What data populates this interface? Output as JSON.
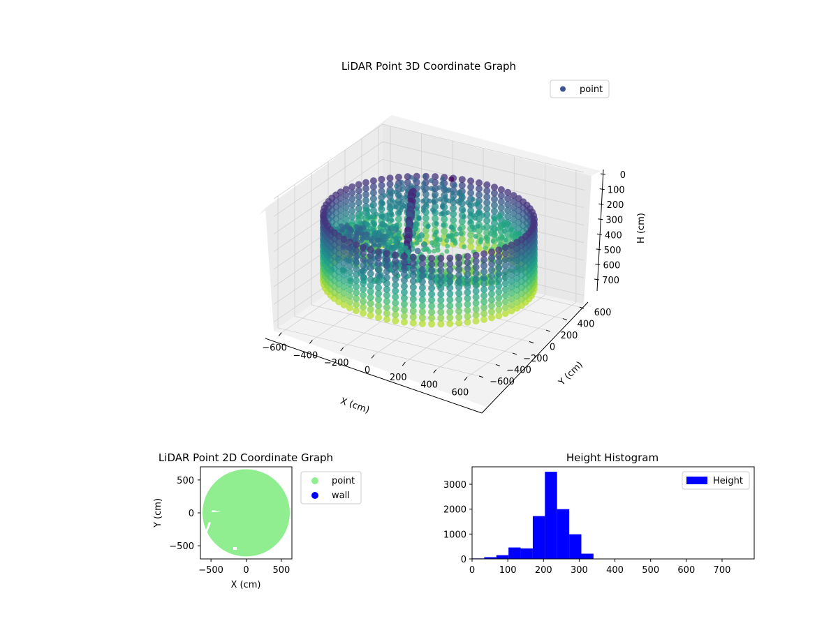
{
  "chart_data": [
    {
      "type": "scatter3d",
      "title": "LiDAR Point 3D Coordinate Graph",
      "xlabel": "X (cm)",
      "ylabel": "Y (cm)",
      "zlabel": "H (cm)",
      "xticks": [
        -600,
        -400,
        -200,
        0,
        200,
        400,
        600
      ],
      "yticks": [
        -600,
        -400,
        -200,
        0,
        200,
        400,
        600
      ],
      "zticks": [
        0,
        100,
        200,
        300,
        400,
        500,
        600,
        700
      ],
      "xlim": [
        -650,
        650
      ],
      "ylim": [
        -650,
        650
      ],
      "zlim": [
        0,
        750
      ],
      "z_inverted": true,
      "legend": [
        {
          "label": "point",
          "color": "#3b528b"
        }
      ],
      "legend_position": "top-right",
      "colormap": "viridis",
      "wall_radius": 600,
      "grid": true
    },
    {
      "type": "scatter",
      "title": "LiDAR Point 2D Coordinate Graph",
      "xlabel": "X (cm)",
      "ylabel": "Y (cm)",
      "xticks": [
        -500,
        0,
        500
      ],
      "yticks": [
        500,
        0,
        -500
      ],
      "xlim": [
        -650,
        650
      ],
      "ylim": [
        -700,
        700
      ],
      "series": [
        {
          "name": "point",
          "color": "#90ee90",
          "region": "disk",
          "center": [
            0,
            0
          ],
          "radius": 620
        },
        {
          "name": "wall",
          "color": "#0000ff",
          "values": []
        }
      ],
      "legend_position": "outside-right"
    },
    {
      "type": "bar",
      "title": "Height Histogram",
      "xlabel": "",
      "ylabel": "",
      "bin_edges": [
        0,
        34,
        68,
        102,
        136,
        170,
        204,
        238,
        272,
        306,
        340,
        374,
        408,
        442,
        476,
        510,
        544,
        578,
        612,
        646,
        680,
        714,
        748,
        782
      ],
      "values": [
        20,
        70,
        150,
        460,
        420,
        1720,
        3500,
        2000,
        990,
        210,
        0,
        0,
        0,
        0,
        0,
        0,
        0,
        0,
        0,
        0,
        0,
        0,
        0
      ],
      "xticks": [
        0,
        100,
        200,
        300,
        400,
        500,
        600,
        700
      ],
      "yticks": [
        0,
        1000,
        2000,
        3000
      ],
      "xlim": [
        0,
        790
      ],
      "ylim": [
        0,
        3700
      ],
      "series": [
        {
          "name": "Height",
          "color": "#0000ff"
        }
      ],
      "legend_position": "top-right"
    }
  ]
}
